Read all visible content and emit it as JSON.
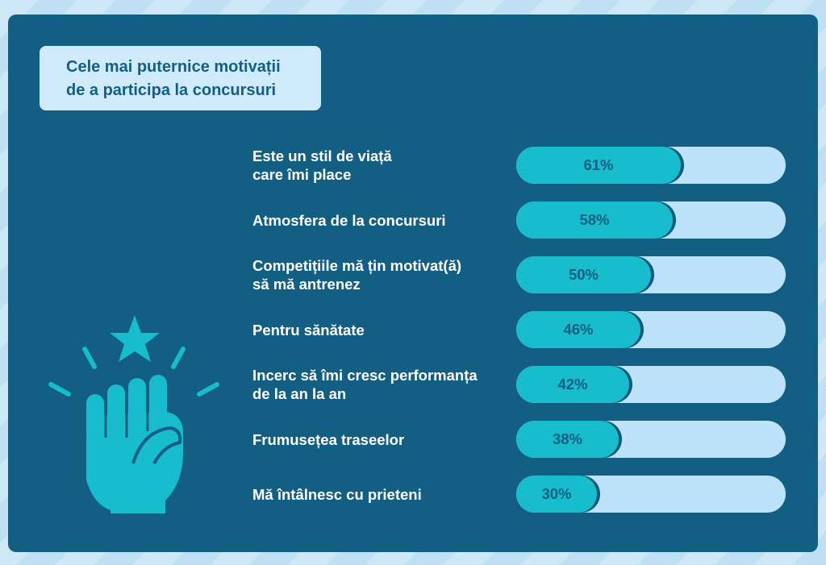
{
  "title": {
    "line1": "Cele mai puternice motivații",
    "line2": "de a participa la concursuri"
  },
  "colors": {
    "panel": "#135f84",
    "bar_fill": "#17bccd",
    "bar_track": "#bde3fa",
    "label_text": "#ffffff"
  },
  "icon": "raised-fist-with-star-icon",
  "chart_data": {
    "type": "bar",
    "orientation": "horizontal",
    "categories": [
      [
        "Este un stil de viață",
        "care îmi place"
      ],
      [
        "Atmosfera de la concursuri"
      ],
      [
        "Competițiile mă țin motivat(ă)",
        "să mă antrenez"
      ],
      [
        "Pentru sănătate"
      ],
      [
        "Incerc să îmi cresc performanța",
        "de la an la an"
      ],
      [
        "Frumusețea traseelor"
      ],
      [
        "Mă întâlnesc cu prieteni"
      ]
    ],
    "values": [
      61,
      58,
      50,
      46,
      42,
      38,
      30
    ],
    "value_labels": [
      "61%",
      "58%",
      "50%",
      "46%",
      "42%",
      "38%",
      "30%"
    ],
    "xlim": [
      0,
      100
    ],
    "unit": "%"
  }
}
